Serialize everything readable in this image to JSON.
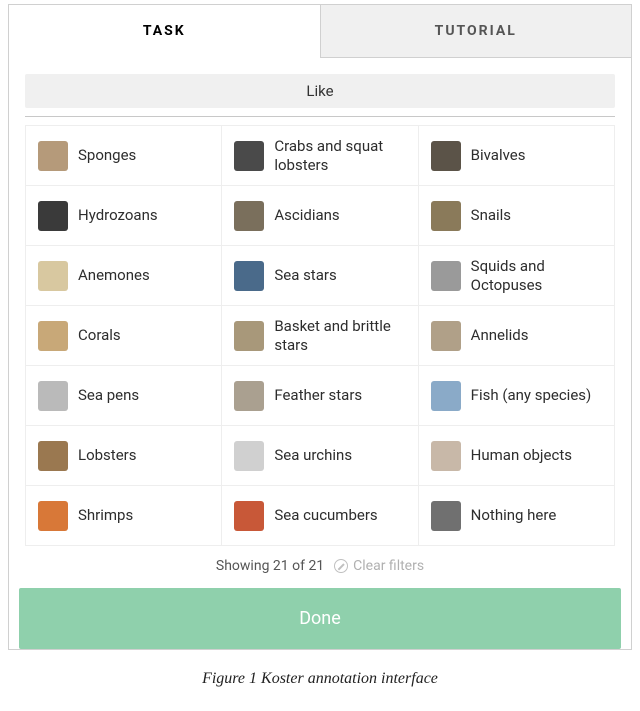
{
  "tabs": {
    "task": "TASK",
    "tutorial": "TUTORIAL"
  },
  "like_label": "Like",
  "grid": {
    "columns": 3,
    "items": [
      {
        "label": "Sponges",
        "thumb_color": "#b59a7a"
      },
      {
        "label": "Crabs and squat lobsters",
        "thumb_color": "#4a4a4a"
      },
      {
        "label": "Bivalves",
        "thumb_color": "#5b5348"
      },
      {
        "label": "Hydrozoans",
        "thumb_color": "#3a3a3a"
      },
      {
        "label": "Ascidians",
        "thumb_color": "#7a6f5c"
      },
      {
        "label": "Snails",
        "thumb_color": "#8a7a5a"
      },
      {
        "label": "Anemones",
        "thumb_color": "#d8c8a0"
      },
      {
        "label": "Sea stars",
        "thumb_color": "#4a6a8a"
      },
      {
        "label": "Squids and Octopuses",
        "thumb_color": "#9a9a9a"
      },
      {
        "label": "Corals",
        "thumb_color": "#c8a878"
      },
      {
        "label": "Basket and brittle stars",
        "thumb_color": "#a8987a"
      },
      {
        "label": "Annelids",
        "thumb_color": "#b0a088"
      },
      {
        "label": "Sea pens",
        "thumb_color": "#bababa"
      },
      {
        "label": "Feather stars",
        "thumb_color": "#aaa090"
      },
      {
        "label": "Fish (any species)",
        "thumb_color": "#8aaac8"
      },
      {
        "label": "Lobsters",
        "thumb_color": "#9a7850"
      },
      {
        "label": "Sea urchins",
        "thumb_color": "#d0d0d0"
      },
      {
        "label": "Human objects",
        "thumb_color": "#c8b8a8"
      },
      {
        "label": "Shrimps",
        "thumb_color": "#d87838"
      },
      {
        "label": "Sea cucumbers",
        "thumb_color": "#c85838"
      },
      {
        "label": "Nothing here",
        "thumb_color": "#707070"
      }
    ]
  },
  "status": {
    "showing": "Showing 21 of 21",
    "clear": "Clear filters"
  },
  "done_label": "Done",
  "caption": "Figure 1 Koster annotation interface",
  "colors": {
    "done_button": "#8fd0ac",
    "tab_inactive_bg": "#f0f0f0",
    "border": "#d0d0d0"
  }
}
